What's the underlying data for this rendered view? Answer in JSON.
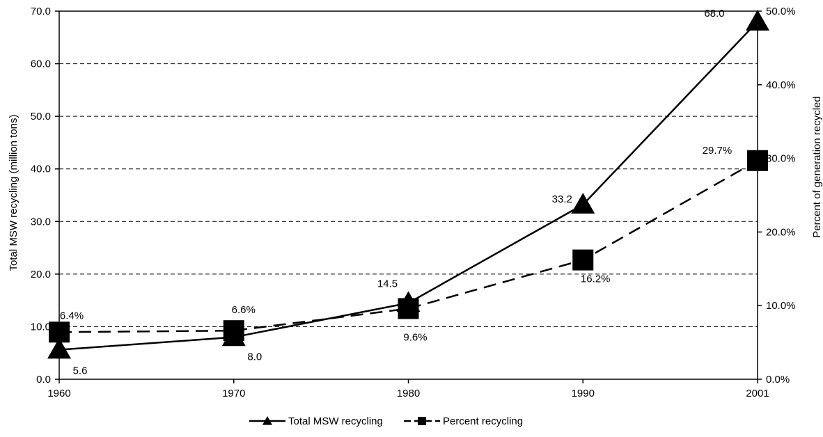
{
  "chart_data": {
    "type": "line",
    "categories": [
      "1960",
      "1970",
      "1980",
      "1990",
      "2001"
    ],
    "title": "",
    "xlabel": "",
    "ylabel": "Total MSW recycling (million tons)",
    "y2label": "Percent of generation recycled",
    "ylim": [
      0,
      70
    ],
    "y2lim": [
      0,
      50
    ],
    "yticks": [
      "0.0",
      "10.0",
      "20.0",
      "30.0",
      "40.0",
      "50.0",
      "60.0",
      "70.0"
    ],
    "y2ticks": [
      "0.0%",
      "10.0%",
      "20.0%",
      "30.0%",
      "40.0%",
      "50.0%"
    ],
    "grid": "horizontal-dashed",
    "legend_position": "bottom",
    "series": [
      {
        "name": "Total MSW recycling",
        "axis": "left",
        "marker": "triangle",
        "line_style": "solid",
        "color": "#000000",
        "values": [
          5.6,
          8.0,
          14.5,
          33.2,
          68.0
        ],
        "labels": [
          "5.6",
          "8.0",
          "14.5",
          "33.2",
          "68.0"
        ]
      },
      {
        "name": "Percent recycling",
        "axis": "right",
        "marker": "square",
        "line_style": "dashed",
        "color": "#000000",
        "values": [
          6.4,
          6.6,
          9.6,
          16.2,
          29.7
        ],
        "labels": [
          "6.4%",
          "6.6%",
          "9.6%",
          "16.2%",
          "29.7%"
        ]
      }
    ]
  }
}
